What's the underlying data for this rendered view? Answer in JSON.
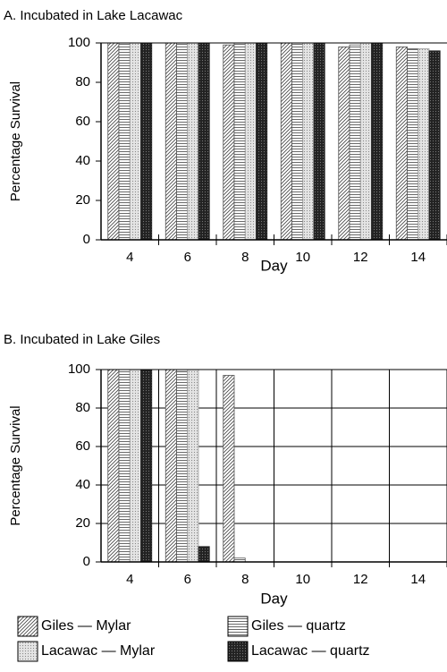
{
  "chart_data": [
    {
      "type": "bar",
      "title": "A. Incubated in Lake Lacawac",
      "xlabel": "Day",
      "ylabel": "Percentage Survival",
      "categories": [
        "4",
        "6",
        "8",
        "10",
        "12",
        "14"
      ],
      "ylim": [
        0,
        100
      ],
      "yticks": [
        0,
        20,
        40,
        60,
        80,
        100
      ],
      "grid": false,
      "series": [
        {
          "name": "Giles — Mylar",
          "color": "#555",
          "pattern": "diagonal",
          "values": [
            100,
            100,
            99,
            100,
            98,
            98
          ]
        },
        {
          "name": "Giles — quartz",
          "color": "#555",
          "pattern": "horizontal",
          "values": [
            100,
            100,
            100,
            100,
            99,
            97
          ]
        },
        {
          "name": "Lacawac — Mylar",
          "color": "#999",
          "pattern": "dotted",
          "values": [
            100,
            100,
            100,
            100,
            100,
            97
          ]
        },
        {
          "name": "Lacawac — quartz",
          "color": "#222",
          "pattern": "dark",
          "values": [
            100,
            100,
            100,
            100,
            100,
            96
          ]
        }
      ]
    },
    {
      "type": "bar",
      "title": "B. Incubated in Lake Giles",
      "xlabel": "Day",
      "ylabel": "Percentage Survival",
      "categories": [
        "4",
        "6",
        "8",
        "10",
        "12",
        "14"
      ],
      "ylim": [
        0,
        100
      ],
      "yticks": [
        0,
        20,
        40,
        60,
        80,
        100
      ],
      "grid": true,
      "series": [
        {
          "name": "Giles — Mylar",
          "color": "#555",
          "pattern": "diagonal",
          "values": [
            100,
            100,
            97,
            0,
            0,
            0
          ]
        },
        {
          "name": "Giles — quartz",
          "color": "#555",
          "pattern": "horizontal",
          "values": [
            100,
            99,
            2,
            0,
            0,
            0
          ]
        },
        {
          "name": "Lacawac — Mylar",
          "color": "#999",
          "pattern": "dotted",
          "values": [
            100,
            100,
            0,
            0,
            0,
            0
          ]
        },
        {
          "name": "Lacawac — quartz",
          "color": "#222",
          "pattern": "dark",
          "values": [
            100,
            8,
            0,
            0,
            0,
            0
          ]
        }
      ]
    }
  ]
}
